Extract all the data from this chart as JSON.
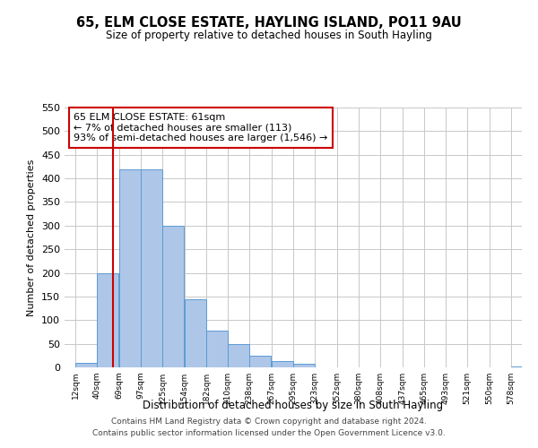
{
  "title": "65, ELM CLOSE ESTATE, HAYLING ISLAND, PO11 9AU",
  "subtitle": "Size of property relative to detached houses in South Hayling",
  "xlabel": "Distribution of detached houses by size in South Hayling",
  "ylabel": "Number of detached properties",
  "bar_edges": [
    12,
    40,
    69,
    97,
    125,
    154,
    182,
    210,
    238,
    267,
    295,
    323,
    352,
    380,
    408,
    437,
    465,
    493,
    521,
    550,
    578
  ],
  "bar_heights": [
    10,
    200,
    420,
    420,
    300,
    145,
    78,
    50,
    25,
    13,
    8,
    0,
    0,
    0,
    0,
    0,
    0,
    0,
    0,
    0,
    2
  ],
  "bar_color": "#aec6e8",
  "bar_edge_color": "#5b9bd5",
  "property_line_x": 61,
  "property_line_color": "#cc0000",
  "annotation_line1": "65 ELM CLOSE ESTATE: 61sqm",
  "annotation_line2": "← 7% of detached houses are smaller (113)",
  "annotation_line3": "93% of semi-detached houses are larger (1,546) →",
  "annotation_box_color": "#cc0000",
  "ylim": [
    0,
    550
  ],
  "tick_labels": [
    "12sqm",
    "40sqm",
    "69sqm",
    "97sqm",
    "125sqm",
    "154sqm",
    "182sqm",
    "210sqm",
    "238sqm",
    "267sqm",
    "295sqm",
    "323sqm",
    "352sqm",
    "380sqm",
    "408sqm",
    "437sqm",
    "465sqm",
    "493sqm",
    "521sqm",
    "550sqm",
    "578sqm"
  ],
  "footer_line1": "Contains HM Land Registry data © Crown copyright and database right 2024.",
  "footer_line2": "Contains public sector information licensed under the Open Government Licence v3.0.",
  "bg_color": "#ffffff",
  "grid_color": "#c8c8c8"
}
